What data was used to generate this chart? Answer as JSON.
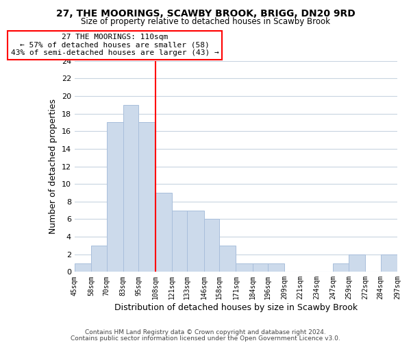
{
  "title": "27, THE MOORINGS, SCAWBY BROOK, BRIGG, DN20 9RD",
  "subtitle": "Size of property relative to detached houses in Scawby Brook",
  "xlabel": "Distribution of detached houses by size in Scawby Brook",
  "ylabel": "Number of detached properties",
  "bar_edges": [
    45,
    58,
    70,
    83,
    95,
    108,
    121,
    133,
    146,
    158,
    171,
    184,
    196,
    209,
    221,
    234,
    247,
    259,
    272,
    284,
    297
  ],
  "bar_heights": [
    1,
    3,
    17,
    19,
    17,
    9,
    7,
    7,
    6,
    3,
    1,
    1,
    1,
    0,
    0,
    0,
    1,
    2,
    0,
    2
  ],
  "bar_color": "#ccdaeb",
  "bar_edgecolor": "#a8bedb",
  "reference_line_x": 108,
  "reference_line_color": "red",
  "annotation_line0": "27 THE MOORINGS: 110sqm",
  "annotation_line1": "← 57% of detached houses are smaller (58)",
  "annotation_line2": "43% of semi-detached houses are larger (43) →",
  "annotation_box_color": "white",
  "annotation_box_edgecolor": "red",
  "ylim": [
    0,
    24
  ],
  "yticks": [
    0,
    2,
    4,
    6,
    8,
    10,
    12,
    14,
    16,
    18,
    20,
    22,
    24
  ],
  "tick_labels": [
    "45sqm",
    "58sqm",
    "70sqm",
    "83sqm",
    "95sqm",
    "108sqm",
    "121sqm",
    "133sqm",
    "146sqm",
    "158sqm",
    "171sqm",
    "184sqm",
    "196sqm",
    "209sqm",
    "221sqm",
    "234sqm",
    "247sqm",
    "259sqm",
    "272sqm",
    "284sqm",
    "297sqm"
  ],
  "footer1": "Contains HM Land Registry data © Crown copyright and database right 2024.",
  "footer2": "Contains public sector information licensed under the Open Government Licence v3.0.",
  "background_color": "#ffffff",
  "grid_color": "#c8d4e0"
}
